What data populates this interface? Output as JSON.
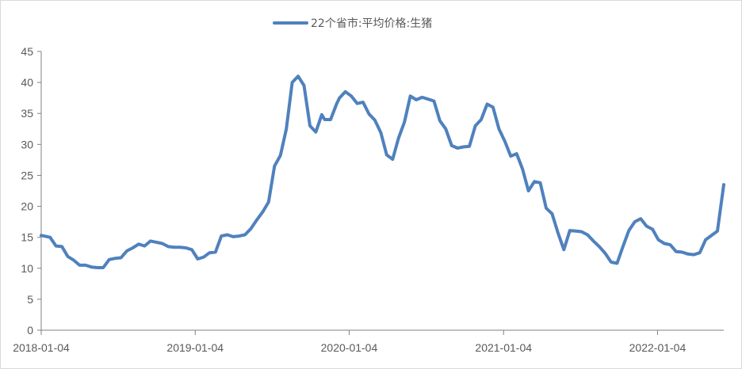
{
  "chart_data": {
    "type": "line",
    "legend": {
      "position": "top",
      "label": "22个省市:平均价格:生猪",
      "color": "#4F81BD"
    },
    "y_ticks": [
      "0",
      "5",
      "10",
      "15",
      "20",
      "25",
      "30",
      "35",
      "40",
      "45"
    ],
    "ylim": [
      0,
      45
    ],
    "x_ticks": [
      "2018-01-04",
      "2019-01-04",
      "2020-01-04",
      "2021-01-04",
      "2022-01-04"
    ],
    "xlim": [
      "2018-01-04",
      "2022-06-10"
    ],
    "grid": false,
    "series": [
      {
        "name": "22个省市:平均价格:生猪",
        "color": "#4F81BD",
        "x": [
          "2018-01-04",
          "2018-01-25",
          "2018-02-08",
          "2018-02-22",
          "2018-03-08",
          "2018-03-22",
          "2018-04-05",
          "2018-04-19",
          "2018-05-03",
          "2018-05-17",
          "2018-05-31",
          "2018-06-14",
          "2018-06-28",
          "2018-07-12",
          "2018-07-26",
          "2018-08-09",
          "2018-08-23",
          "2018-09-06",
          "2018-09-20",
          "2018-10-04",
          "2018-10-18",
          "2018-11-01",
          "2018-11-15",
          "2018-11-29",
          "2018-12-13",
          "2018-12-27",
          "2019-01-10",
          "2019-01-24",
          "2019-02-07",
          "2019-02-21",
          "2019-03-07",
          "2019-03-21",
          "2019-04-04",
          "2019-04-18",
          "2019-05-02",
          "2019-05-16",
          "2019-05-30",
          "2019-06-13",
          "2019-06-27",
          "2019-07-11",
          "2019-07-25",
          "2019-08-08",
          "2019-08-22",
          "2019-09-05",
          "2019-09-19",
          "2019-10-03",
          "2019-10-17",
          "2019-10-31",
          "2019-11-07",
          "2019-11-21",
          "2019-12-05",
          "2019-12-12",
          "2019-12-26",
          "2020-01-09",
          "2020-01-23",
          "2020-02-06",
          "2020-02-20",
          "2020-03-05",
          "2020-03-19",
          "2020-04-02",
          "2020-04-16",
          "2020-04-30",
          "2020-05-14",
          "2020-05-28",
          "2020-06-11",
          "2020-06-25",
          "2020-07-09",
          "2020-07-23",
          "2020-08-06",
          "2020-08-20",
          "2020-09-03",
          "2020-09-17",
          "2020-10-01",
          "2020-10-15",
          "2020-10-29",
          "2020-11-12",
          "2020-11-26",
          "2020-12-10",
          "2020-12-24",
          "2021-01-07",
          "2021-01-21",
          "2021-02-04",
          "2021-02-18",
          "2021-03-04",
          "2021-03-18",
          "2021-04-01",
          "2021-04-15",
          "2021-04-29",
          "2021-05-13",
          "2021-05-27",
          "2021-06-10",
          "2021-06-24",
          "2021-07-08",
          "2021-07-22",
          "2021-08-05",
          "2021-08-19",
          "2021-09-02",
          "2021-09-16",
          "2021-09-30",
          "2021-10-14",
          "2021-10-28",
          "2021-11-11",
          "2021-11-25",
          "2021-12-09",
          "2021-12-23",
          "2022-01-06",
          "2022-01-20",
          "2022-02-03",
          "2022-02-17",
          "2022-03-03",
          "2022-03-17",
          "2022-03-31",
          "2022-04-14",
          "2022-04-28",
          "2022-05-12",
          "2022-05-26",
          "2022-06-10"
        ],
        "values": [
          15.3,
          15.0,
          13.6,
          13.5,
          11.9,
          11.3,
          10.5,
          10.5,
          10.2,
          10.1,
          10.1,
          11.4,
          11.6,
          11.7,
          12.8,
          13.3,
          13.9,
          13.6,
          14.4,
          14.2,
          14.0,
          13.5,
          13.4,
          13.4,
          13.3,
          13.0,
          11.5,
          11.8,
          12.5,
          12.6,
          15.2,
          15.4,
          15.1,
          15.2,
          15.4,
          16.4,
          17.8,
          19.1,
          20.7,
          26.5,
          28.2,
          32.5,
          40.0,
          41.0,
          39.5,
          33.0,
          32.0,
          34.8,
          34.0,
          34.0,
          36.5,
          37.5,
          38.5,
          37.8,
          36.6,
          36.8,
          34.9,
          33.9,
          31.9,
          28.3,
          27.6,
          31.0,
          33.6,
          37.8,
          37.2,
          37.6,
          37.3,
          37.0,
          33.8,
          32.5,
          29.8,
          29.4,
          29.6,
          29.7,
          33.0,
          34.0,
          36.5,
          36.0,
          32.5,
          30.5,
          28.1,
          28.5,
          26.0,
          22.5,
          24.0,
          23.8,
          19.7,
          18.8,
          15.7,
          13.0,
          16.1,
          16.0,
          15.9,
          15.4,
          14.4,
          13.5,
          12.4,
          11.0,
          10.8,
          13.5,
          16.1,
          17.5,
          18.0,
          16.8,
          16.3,
          14.6,
          14.0,
          13.8,
          12.7,
          12.6,
          12.3,
          12.2,
          12.5,
          14.6,
          15.3,
          16.0,
          23.5
        ]
      }
    ]
  }
}
